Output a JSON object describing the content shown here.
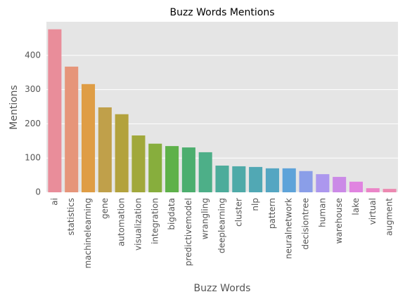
{
  "chart_data": {
    "type": "bar",
    "title": "Buzz Words Mentions",
    "x_label": "Buzz Words",
    "y_label": "Mentions",
    "categories": [
      "ai",
      "statistics",
      "machinelearning",
      "gene",
      "automation",
      "visualization",
      "integration",
      "bigdata",
      "predictivemodel",
      "wrangling",
      "deeplearning",
      "cluster",
      "nlp",
      "pattern",
      "neuralnetwork",
      "decisiontree",
      "human",
      "warehouse",
      "lake",
      "virtual",
      "augment"
    ],
    "values": [
      476,
      367,
      316,
      248,
      228,
      166,
      142,
      135,
      131,
      117,
      78,
      76,
      74,
      70,
      70,
      62,
      53,
      45,
      31,
      12,
      10
    ],
    "colors": [
      "#e98d9a",
      "#e6957a",
      "#df9d45",
      "#c0a04a",
      "#b3a23d",
      "#a1a83b",
      "#87ae3d",
      "#5eb14a",
      "#4cae6e",
      "#4daf88",
      "#4dac9b",
      "#4faaa8",
      "#51a8b4",
      "#55a6c2",
      "#5ea3d9",
      "#8a9ee8",
      "#ac97ee",
      "#cb8ae7",
      "#e084e0",
      "#eb85c8",
      "#ec89b1"
    ],
    "ylim": [
      0,
      498
    ],
    "yticks": [
      0,
      100,
      200,
      300,
      400
    ],
    "grid": true
  }
}
